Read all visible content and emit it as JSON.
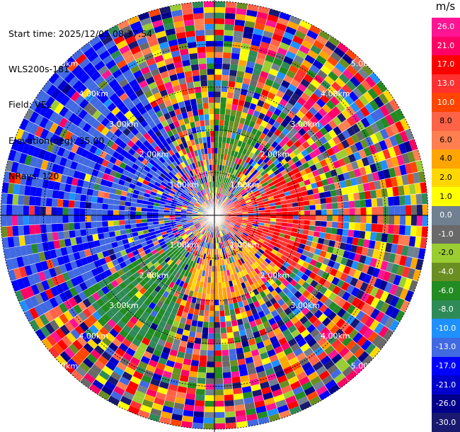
{
  "header": {
    "start_time": "Start time: 2025/12/05 08:37:54",
    "instrument": "WLS200s-181",
    "field": "Field: VEL",
    "elevation": "Elevation(deg): 35.00",
    "nrays": "NRays: 120"
  },
  "colorbar": {
    "unit": "m/s",
    "ticks": [
      "26.0",
      "21.0",
      "17.0",
      "13.0",
      "10.0",
      "8.0",
      "6.0",
      "4.0",
      "2.0",
      "1.0",
      "0.0",
      "-1.0",
      "-2.0",
      "-4.0",
      "-6.0",
      "-8.0",
      "-10.0",
      "-13.0",
      "-17.0",
      "-21.0",
      "-26.0",
      "-30.0"
    ],
    "colors": [
      "#ff1493",
      "#ff0066",
      "#ff0000",
      "#ff3030",
      "#ff4500",
      "#ff6347",
      "#ff7f50",
      "#ffa500",
      "#ffd700",
      "#ffff00",
      "#708090",
      "#696969",
      "#9acd32",
      "#6b8e23",
      "#228b22",
      "#2e8b57",
      "#1e90ff",
      "#4169e1",
      "#0000ff",
      "#0000cd",
      "#00008b",
      "#191970"
    ]
  },
  "chart_data": {
    "type": "heatmap",
    "title": "",
    "field": "VEL",
    "units": "m/s",
    "nrays": 120,
    "elevation_deg": 35.0,
    "range_rings_km": [
      1.0,
      2.0,
      3.0,
      4.0,
      5.0
    ],
    "range_ring_labels": [
      "1.00km",
      "2.00km",
      "3.00km",
      "4.00km",
      "5.00km"
    ],
    "max_range_km": 5.0,
    "color_scale": {
      "min": -30.0,
      "max": 26.0,
      "levels": [
        26.0,
        21.0,
        17.0,
        13.0,
        10.0,
        8.0,
        6.0,
        4.0,
        2.0,
        1.0,
        0.0,
        -1.0,
        -2.0,
        -4.0,
        -6.0,
        -8.0,
        -10.0,
        -13.0,
        -17.0,
        -21.0,
        -26.0,
        -30.0
      ]
    },
    "sectors": [
      {
        "azimuth_deg": [
          0,
          30
        ],
        "range_km": [
          0.5,
          2.5
        ],
        "velocity_ms": -6.0
      },
      {
        "azimuth_deg": [
          60,
          130
        ],
        "range_km": [
          0.2,
          2.3
        ],
        "velocity_ms": 13.0
      },
      {
        "azimuth_deg": [
          130,
          200
        ],
        "range_km": [
          0.8,
          2.0
        ],
        "velocity_ms": 3.0
      },
      {
        "azimuth_deg": [
          200,
          240
        ],
        "range_km": [
          1.0,
          3.5
        ],
        "velocity_ms": -8.0
      },
      {
        "azimuth_deg": [
          240,
          330
        ],
        "range_km": [
          0.5,
          5.0
        ],
        "velocity_ms": -17.0
      }
    ]
  }
}
